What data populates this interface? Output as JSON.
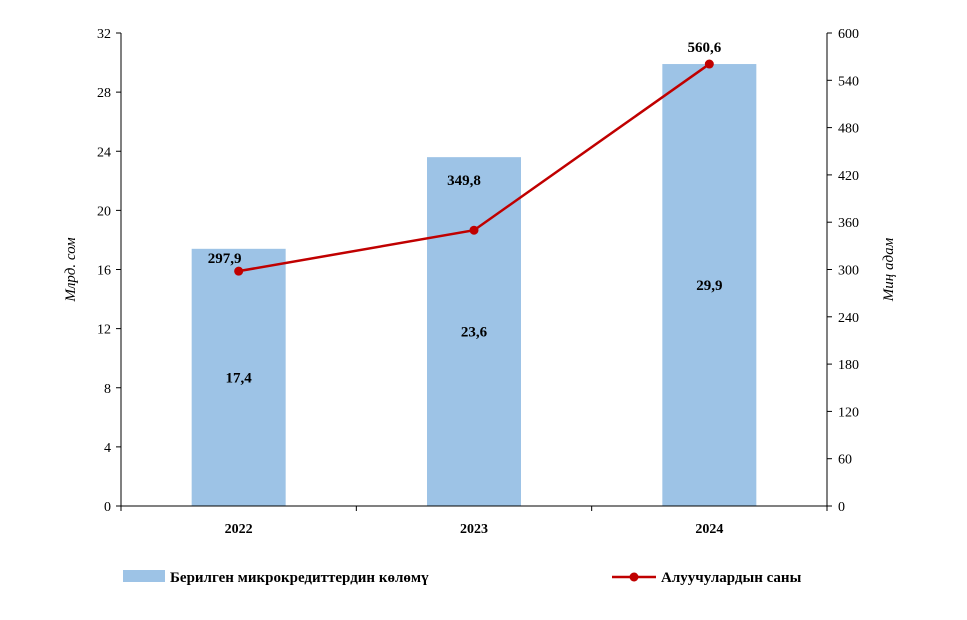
{
  "chart_data": {
    "type": "bar",
    "categories": [
      "2022",
      "2023",
      "2024"
    ],
    "series": [
      {
        "name": "Берилген микрокредиттердин көлөмү",
        "chart_type": "bar",
        "axis": "left",
        "values": [
          17.4,
          23.6,
          29.9
        ],
        "labels": [
          "17,4",
          "23,6",
          "29,9"
        ],
        "color": "#9DC3E6"
      },
      {
        "name": "Алуучулардын саны",
        "chart_type": "line",
        "axis": "right",
        "values": [
          297.9,
          349.8,
          560.6
        ],
        "labels": [
          "297,9",
          "349,8",
          "560,6"
        ],
        "color": "#C00000"
      }
    ],
    "ylabel": "Млрд. сом",
    "ylabel_right": "Миң адам",
    "ylim": [
      0,
      32
    ],
    "ylim_right": [
      0,
      600
    ],
    "yticks": [
      0,
      4,
      8,
      12,
      16,
      20,
      24,
      28,
      32
    ],
    "yticks_right": [
      0,
      60,
      120,
      180,
      240,
      300,
      360,
      420,
      480,
      540,
      600
    ],
    "grid": false,
    "legend_position": "bottom"
  }
}
